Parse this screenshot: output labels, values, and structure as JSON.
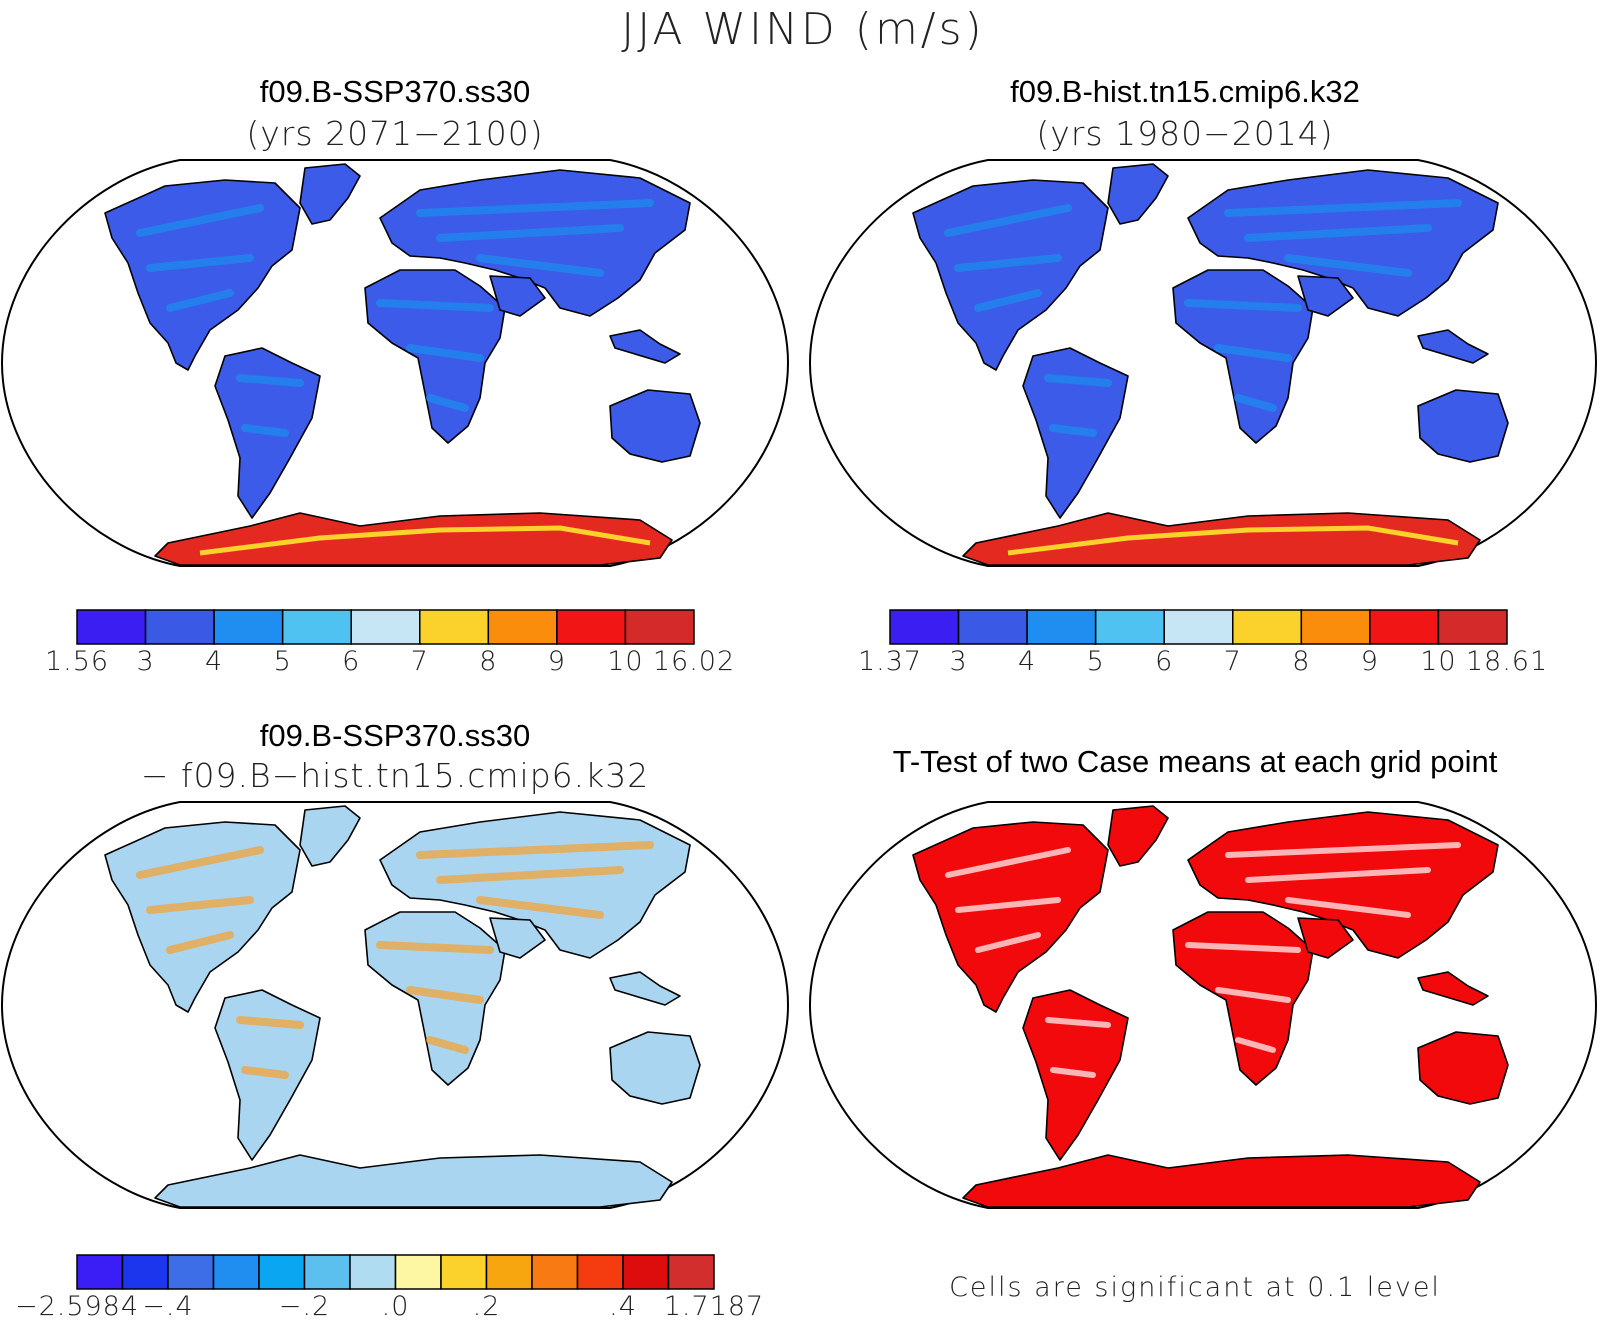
{
  "figure": {
    "title": "JJA WIND (m/s)"
  },
  "panels": [
    {
      "id": "p1",
      "title": "f09.B-SSP370.ss30",
      "subtitle": "(yrs 2071−2100)",
      "kind": "field",
      "land_color": "#3b5be8",
      "colorbar": {
        "colors": [
          "#3b1ef2",
          "#3a5ae6",
          "#1f8ef0",
          "#50c2f2",
          "#c6e6f6",
          "#fbd12b",
          "#fb8d0c",
          "#f21515",
          "#d42a2a"
        ],
        "labels": [
          "1.56",
          "3",
          "4",
          "5",
          "6",
          "7",
          "8",
          "9",
          "10",
          "16.02"
        ]
      }
    },
    {
      "id": "p2",
      "title": "f09.B-hist.tn15.cmip6.k32",
      "subtitle": "(yrs 1980−2014)",
      "kind": "field",
      "land_color": "#3b5be8",
      "colorbar": {
        "colors": [
          "#3b1ef2",
          "#3a5ae6",
          "#1f8ef0",
          "#50c2f2",
          "#c6e6f6",
          "#fbd12b",
          "#fb8d0c",
          "#f21515",
          "#d42a2a"
        ],
        "labels": [
          "1.37",
          "3",
          "4",
          "5",
          "6",
          "7",
          "8",
          "9",
          "10",
          "18.61"
        ]
      }
    },
    {
      "id": "p3",
      "title": "f09.B-SSP370.ss30",
      "subtitle": "− f09.B−hist.tn15.cmip6.k32",
      "kind": "difference",
      "land_color": "#a9d5f0",
      "colorbar": {
        "colors": [
          "#3a1ef5",
          "#1c36ee",
          "#3d6ee8",
          "#1f8ef0",
          "#0aa6f2",
          "#5cc0ef",
          "#b0dcf2",
          "#fdf7a4",
          "#fbd12b",
          "#f8a60f",
          "#f77b12",
          "#f53c10",
          "#dd0d0d",
          "#d22e2e"
        ],
        "labels": [
          "−2.5984",
          "−.4",
          "−.2",
          ".0",
          ".2",
          ".4",
          "1.7187"
        ]
      }
    },
    {
      "id": "p4",
      "title": "T-Test of two Case means at each grid point",
      "note": "Cells are significant at 0.1 level",
      "kind": "significance",
      "land_color": "#f2090b"
    }
  ]
}
